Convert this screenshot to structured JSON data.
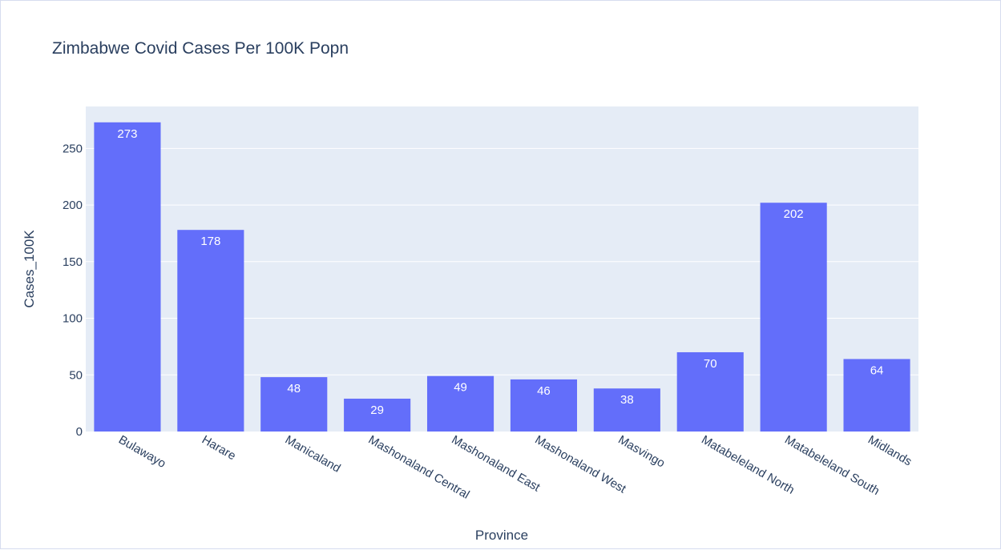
{
  "colors": {
    "bar": "#636efa",
    "plot_background": "#e5ecf6",
    "grid": "#ffffff",
    "text": "#2a3f5f",
    "bar_label": "#ffffff"
  },
  "chart_data": {
    "type": "bar",
    "title": "Zimbabwe Covid Cases Per 100K Popn",
    "xlabel": "Province",
    "ylabel": "Cases_100K",
    "categories": [
      "Bulawayo",
      "Harare",
      "Manicaland",
      "Mashonaland Central",
      "Mashonaland East",
      "Mashonaland West",
      "Masvingo",
      "Matabeleland North",
      "Matabeleland South",
      "Midlands"
    ],
    "values": [
      273,
      178,
      48,
      29,
      49,
      46,
      38,
      70,
      202,
      64
    ],
    "ylim": [
      0,
      287
    ],
    "yticks": [
      0,
      50,
      100,
      150,
      200,
      250
    ],
    "grid": true,
    "data_labels": "inside-end",
    "x_tick_rotation": 30
  }
}
